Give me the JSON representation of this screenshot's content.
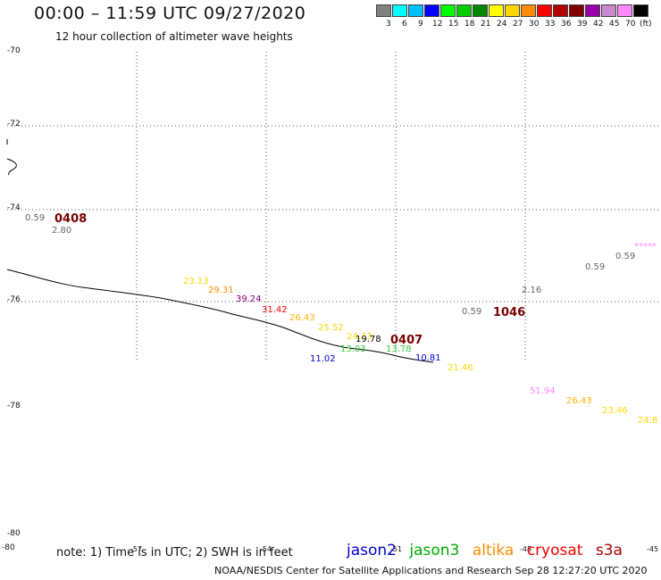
{
  "header": {
    "title": "00:00 – 11:59 UTC 09/27/2020",
    "subtitle": "12 hour collection of altimeter wave heights"
  },
  "legend": {
    "unit": "(ft)",
    "colors": [
      "#808080",
      "#00ffff",
      "#00bfff",
      "#0000ff",
      "#00ff00",
      "#00cc00",
      "#008800",
      "#ffff00",
      "#ffd700",
      "#ff8c00",
      "#ff0000",
      "#b00000",
      "#800000",
      "#9900aa",
      "#cc88cc",
      "#ff88ff",
      "#000000"
    ],
    "labels": [
      "3",
      "6",
      "9",
      "12",
      "15",
      "18",
      "21",
      "24",
      "27",
      "30",
      "33",
      "36",
      "39",
      "42",
      "45",
      "70"
    ]
  },
  "axes": {
    "lat_labels": [
      "-70",
      "-72",
      "-74",
      "-76",
      "-78",
      "-80",
      "-80"
    ],
    "lon_labels": [
      "-57",
      "-54",
      "-51",
      "-48",
      "-45"
    ]
  },
  "observations": [
    {
      "text": "0.59",
      "color": "#666666"
    },
    {
      "text": "2.80",
      "color": "#666666"
    },
    {
      "text": "23.13",
      "color": "#ffd700"
    },
    {
      "text": "29.31",
      "color": "#ff8c00"
    },
    {
      "text": "39.24",
      "color": "#800080"
    },
    {
      "text": "31.42",
      "color": "#ff0000"
    },
    {
      "text": "26.43",
      "color": "#ffb000"
    },
    {
      "text": "25.52",
      "color": "#ffd700"
    },
    {
      "text": "24.33",
      "color": "#ffd700"
    },
    {
      "text": "19.78",
      "color": "#000000"
    },
    {
      "text": "13.03",
      "color": "#33cc33"
    },
    {
      "text": "13.78",
      "color": "#33cc33"
    },
    {
      "text": "11.02",
      "color": "#0000cc"
    },
    {
      "text": "10.81",
      "color": "#0000cc"
    },
    {
      "text": "21.46",
      "color": "#ffd700"
    },
    {
      "text": "0.59",
      "color": "#666666"
    },
    {
      "text": "2.16",
      "color": "#666666"
    },
    {
      "text": "0.59",
      "color": "#666666"
    },
    {
      "text": "0.59",
      "color": "#666666"
    },
    {
      "text": "*****",
      "color": "#ff88ff"
    },
    {
      "text": "51.94",
      "color": "#ff88ff"
    },
    {
      "text": "26.43",
      "color": "#ffb000"
    },
    {
      "text": "23.46",
      "color": "#ffd700"
    },
    {
      "text": "24.8",
      "color": "#ffd700"
    }
  ],
  "pass_times": [
    "0408",
    "0407",
    "1046"
  ],
  "note": "note: 1) Time is in UTC; 2) SWH is in feet",
  "satellites": [
    {
      "name": "jason2",
      "color": "#0000cc"
    },
    {
      "name": "jason3",
      "color": "#00aa00"
    },
    {
      "name": "altika",
      "color": "#ff8c00"
    },
    {
      "name": "cryosat",
      "color": "#ee0000"
    },
    {
      "name": "s3a",
      "color": "#aa0000"
    }
  ],
  "footer": "NOAA/NESDIS Center for Satellite Applications and Research    Sep 28 12:27:20 UTC 2020"
}
